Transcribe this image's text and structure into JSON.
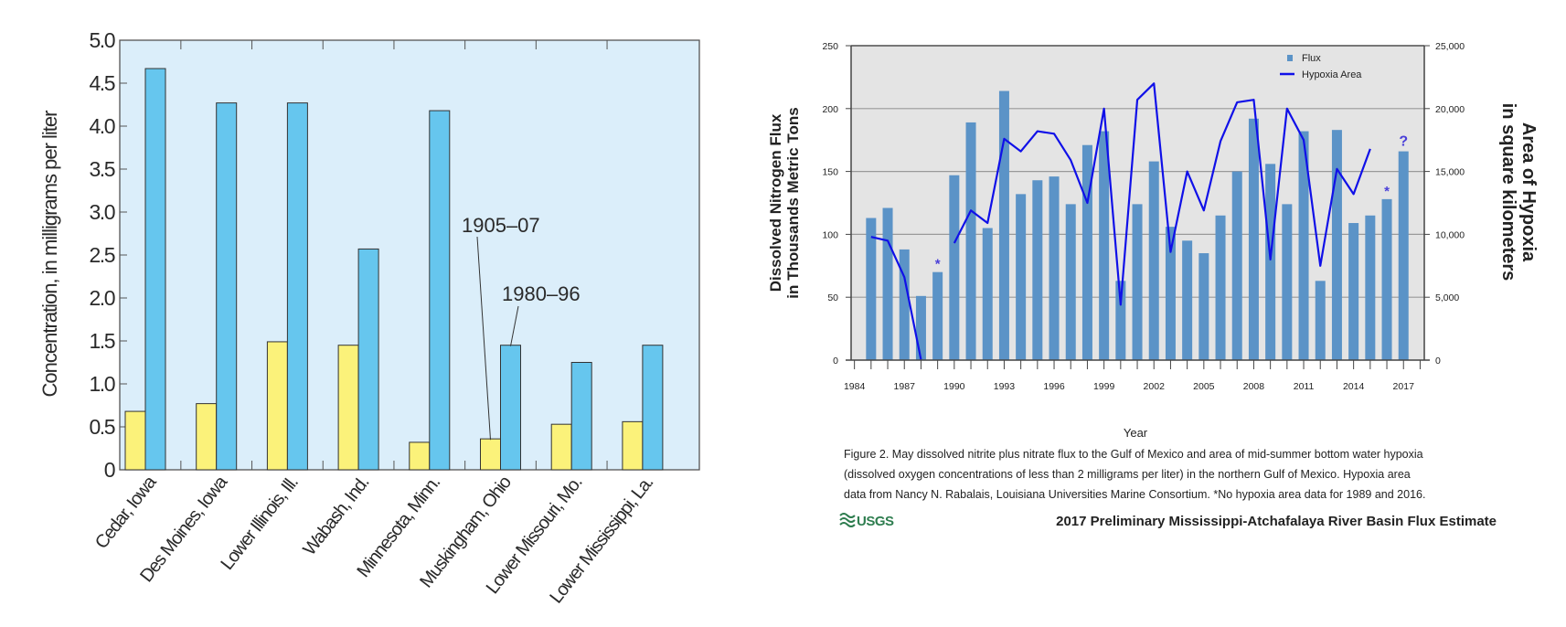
{
  "chart_data": [
    {
      "type": "bar",
      "title": "",
      "xlabel": "",
      "ylabel": "Concentration, in milligrams per liter",
      "ylim": [
        0,
        5.0
      ],
      "yticks": [
        "0",
        "0.5",
        "1.0",
        "1.5",
        "2.0",
        "2.5",
        "3.0",
        "3.5",
        "4.0",
        "4.5",
        "5.0"
      ],
      "grid": false,
      "categories": [
        "Cedar, Iowa",
        "Des Moines, Iowa",
        "Lower Illinois, Ill.",
        "Wabash, Ind.",
        "Minnesota, Minn.",
        "Muskingham, Ohio",
        "Lower Missouri, Mo.",
        "Lower Mississippi, La."
      ],
      "series": [
        {
          "name": "1905–07",
          "color": "#fbf27a",
          "values": [
            0.68,
            0.77,
            1.49,
            1.45,
            0.32,
            0.36,
            0.53,
            0.56
          ]
        },
        {
          "name": "1980–96",
          "color": "#66c6ee",
          "values": [
            4.67,
            4.27,
            4.27,
            2.57,
            4.18,
            1.45,
            1.25,
            1.45
          ]
        }
      ],
      "background": "#dbeefa"
    },
    {
      "type": "bar+line",
      "title": "",
      "xlabel": "Year",
      "ylabel": "Dissolved Nitrogen Flux\nin Thousands Metric Tons",
      "ylabel_lines": [
        "Dissolved Nitrogen Flux",
        "in Thousands Metric Tons"
      ],
      "y2label_lines": [
        "Area of Hypoxia",
        "in square kilometers"
      ],
      "ylim": [
        0,
        250
      ],
      "y2lim": [
        0,
        25000
      ],
      "yticks": [
        "0",
        "50",
        "100",
        "150",
        "200",
        "250"
      ],
      "y2ticks": [
        "0",
        "5,000",
        "10,000",
        "15,000",
        "20,000",
        "25,000"
      ],
      "xticks": [
        "1984",
        "1987",
        "1990",
        "1993",
        "1996",
        "1999",
        "2002",
        "2005",
        "2008",
        "2011",
        "2014",
        "2017"
      ],
      "grid": true,
      "legend": {
        "position": "top-right",
        "entries": [
          "Flux",
          "Hypoxia Area"
        ]
      },
      "background": "#e4e4e4",
      "years": [
        1985,
        1986,
        1987,
        1988,
        1989,
        1990,
        1991,
        1992,
        1993,
        1994,
        1995,
        1996,
        1997,
        1998,
        1999,
        2000,
        2001,
        2002,
        2003,
        2004,
        2005,
        2006,
        2007,
        2008,
        2009,
        2010,
        2011,
        2012,
        2013,
        2014,
        2015,
        2016,
        2017
      ],
      "series": [
        {
          "name": "Flux",
          "color": "#5b93c7",
          "axis": "left",
          "values": [
            113,
            121,
            88,
            51,
            70,
            147,
            189,
            105,
            214,
            132,
            143,
            146,
            124,
            171,
            182,
            63,
            124,
            158,
            106,
            95,
            85,
            115,
            150,
            192,
            156,
            124,
            182,
            63,
            183,
            109,
            115,
            128,
            166
          ]
        },
        {
          "name": "Hypoxia Area",
          "color": "#1010e8",
          "axis": "right",
          "values": [
            9800,
            9500,
            6600,
            40,
            null,
            9300,
            11900,
            10900,
            17600,
            16600,
            18200,
            18000,
            15900,
            12500,
            20000,
            4400,
            20700,
            22000,
            8600,
            15000,
            11900,
            17400,
            20500,
            20700,
            8000,
            20000,
            17500,
            7500,
            15200,
            13200,
            16800,
            null,
            null
          ]
        }
      ],
      "annotations": [
        {
          "year": 1989,
          "text": "*"
        },
        {
          "year": 2016,
          "text": "*"
        },
        {
          "year": 2017,
          "text": "?"
        }
      ],
      "annotation_color": "#4a3fd8",
      "caption_lines": [
        "Figure 2. May dissolved nitrite plus nitrate flux to the Gulf of Mexico and area of mid-summer bottom water hypoxia",
        "(dissolved oxygen concentrations of less than 2 milligrams per liter) in the northern Gulf of Mexico. Hypoxia area",
        "data from Nancy N. Rabalais, Louisiana Universities Marine Consortium. *No hypoxia area data for 1989 and 2016."
      ],
      "footer_title": "2017 Preliminary Mississippi-Atchafalaya River Basin Flux Estimate",
      "logo_text": "USGS",
      "logo_color": "#2e7d4f"
    }
  ]
}
